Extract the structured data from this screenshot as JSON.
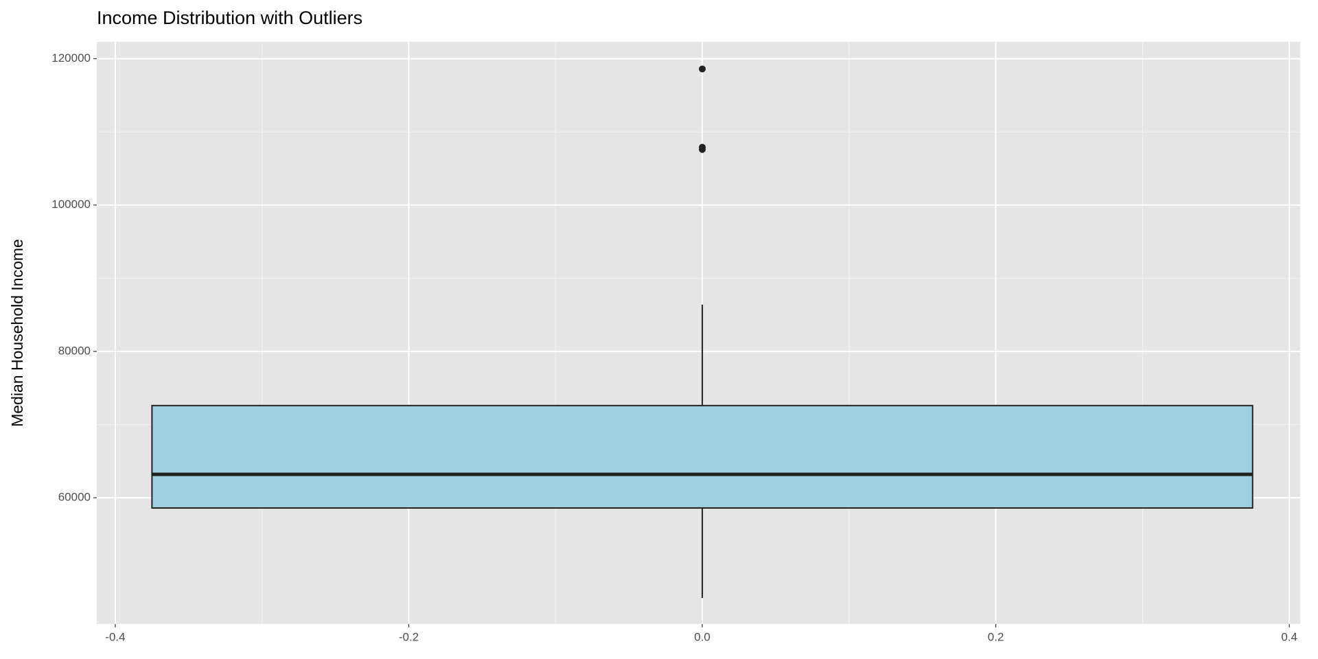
{
  "chart_data": {
    "type": "box",
    "title": "Income Distribution with Outliers",
    "y_label": "Median Household Income",
    "boxes": [
      {
        "x": 0,
        "whisker_low": 46300,
        "q1": 58600,
        "median": 63200,
        "q3": 72600,
        "whisker_high": 86400,
        "outliers": [
          107600,
          107900,
          118600
        ]
      }
    ],
    "box_width": 0.75,
    "fill": "#9ecfe0",
    "line_color": "#222222",
    "xlim": [
      -0.4126,
      0.4074
    ],
    "xticks": [
      -0.4,
      -0.2,
      {
        "value": 0,
        "label": "0.0"
      },
      0.2,
      0.4
    ],
    "ylim": [
      42750,
      122300
    ],
    "yticks": [
      60000,
      80000,
      100000,
      120000
    ],
    "grid": true
  }
}
